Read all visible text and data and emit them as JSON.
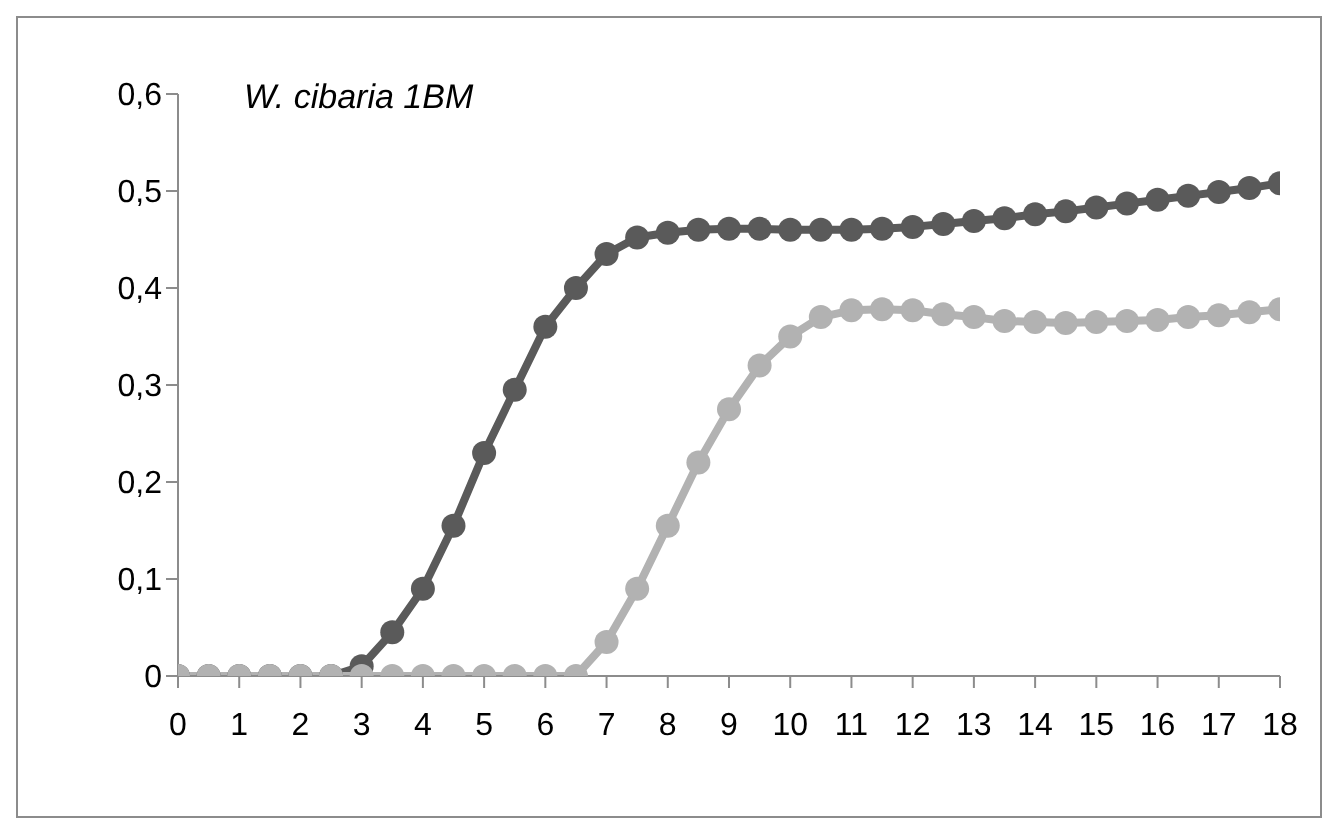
{
  "chart_data": {
    "type": "line",
    "title": "W. cibaria 1BM",
    "x": [
      0,
      0.5,
      1,
      1.5,
      2,
      2.5,
      3,
      3.5,
      4,
      4.5,
      5,
      5.5,
      6,
      6.5,
      7,
      7.5,
      8,
      8.5,
      9,
      9.5,
      10,
      10.5,
      11,
      11.5,
      12,
      12.5,
      13,
      13.5,
      14,
      14.5,
      15,
      15.5,
      16,
      16.5,
      17,
      17.5,
      18
    ],
    "series": [
      {
        "color": "#5a5a5a",
        "values": [
          0,
          0,
          0,
          0,
          0,
          0,
          0.01,
          0.045,
          0.09,
          0.155,
          0.23,
          0.295,
          0.36,
          0.4,
          0.435,
          0.452,
          0.457,
          0.46,
          0.461,
          0.461,
          0.46,
          0.46,
          0.46,
          0.461,
          0.463,
          0.466,
          0.469,
          0.472,
          0.476,
          0.479,
          0.483,
          0.487,
          0.491,
          0.495,
          0.499,
          0.503,
          0.508
        ]
      },
      {
        "color": "#b2b2b2",
        "values": [
          0,
          0,
          0,
          0,
          0,
          0,
          0,
          0,
          0,
          0,
          0,
          0,
          0,
          0,
          0.035,
          0.09,
          0.155,
          0.22,
          0.275,
          0.32,
          0.35,
          0.37,
          0.377,
          0.378,
          0.377,
          0.373,
          0.37,
          0.366,
          0.365,
          0.364,
          0.365,
          0.366,
          0.367,
          0.37,
          0.372,
          0.375,
          0.378
        ]
      }
    ],
    "xlim": [
      0,
      18
    ],
    "xticks": [
      0,
      1,
      2,
      3,
      4,
      5,
      6,
      7,
      8,
      9,
      10,
      11,
      12,
      13,
      14,
      15,
      16,
      17,
      18
    ],
    "ylim": [
      0,
      0.6
    ],
    "yticks": [
      0,
      {
        "value": 0.1,
        "label": "0,1"
      },
      {
        "value": 0.2,
        "label": "0,2"
      },
      {
        "value": 0.3,
        "label": "0,3"
      },
      {
        "value": 0.4,
        "label": "0,4"
      },
      {
        "value": 0.5,
        "label": "0,5"
      },
      {
        "value": 0.6,
        "label": "0,6"
      }
    ],
    "grid": false,
    "legend": false,
    "marker": "circle",
    "line_style": "solid"
  }
}
